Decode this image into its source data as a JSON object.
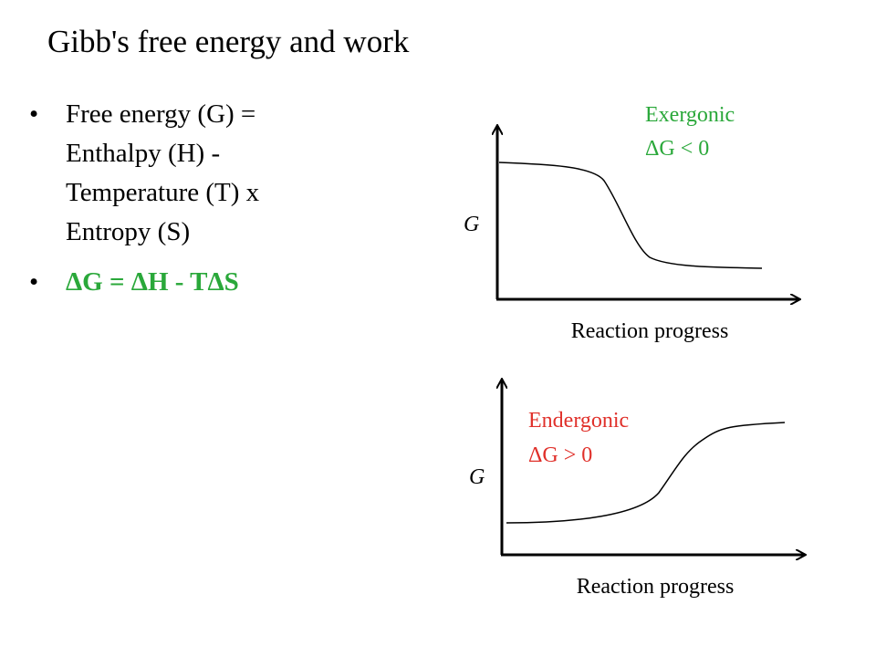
{
  "title": "Gibb's free energy and work",
  "bullets": [
    "Free energy (G) = Enthalpy (H) - Temperature (T) x Entropy (S)",
    "ΔG = ΔH - TΔS"
  ],
  "diagrams": [
    {
      "annotation": [
        "Exergonic",
        "ΔG < 0"
      ],
      "y_label": "G",
      "x_label": "Reaction progress"
    },
    {
      "annotation": [
        "Endergonic",
        "ΔG > 0"
      ],
      "y_label": "G",
      "x_label": "Reaction progress"
    }
  ]
}
